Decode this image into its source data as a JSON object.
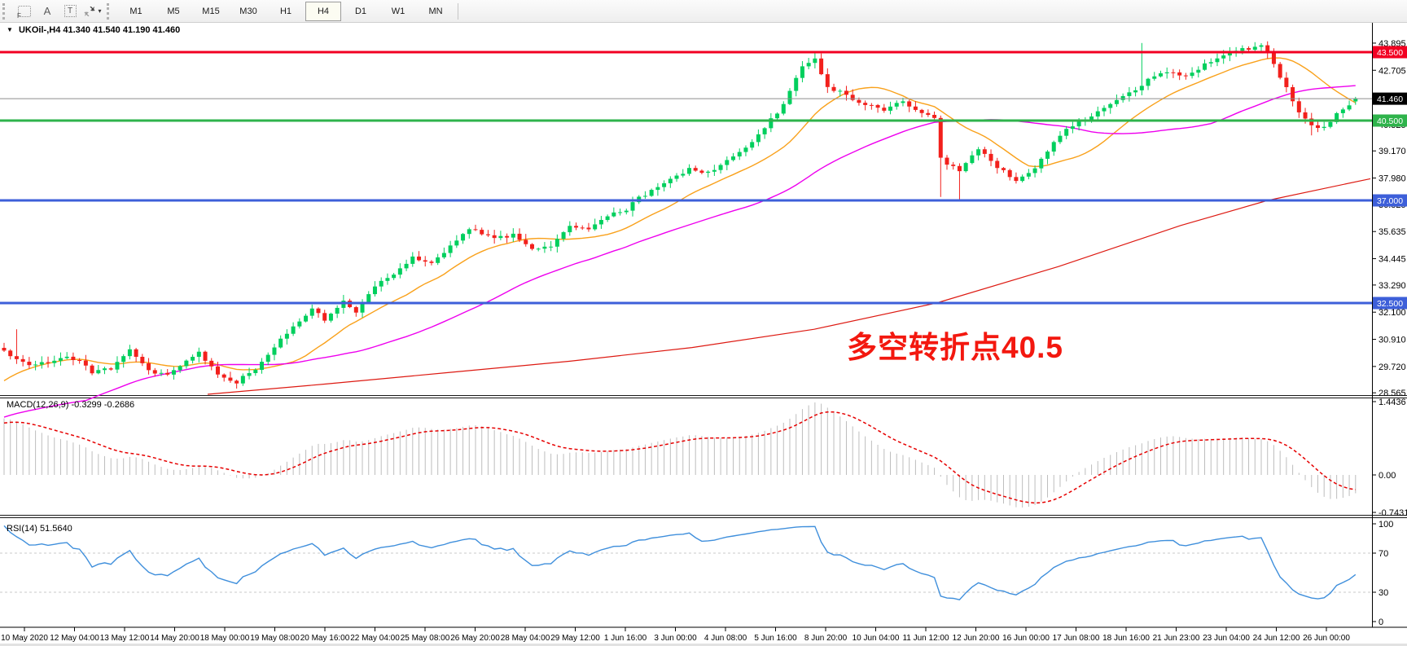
{
  "toolbar": {
    "tools": [
      {
        "name": "freehand-tool",
        "glyph": "F"
      },
      {
        "name": "text-label-tool",
        "glyph": "A"
      },
      {
        "name": "text-box-tool",
        "glyph": "T"
      },
      {
        "name": "arrows-tool",
        "dropdown_caret": "▾"
      }
    ],
    "timeframes": [
      "M1",
      "M5",
      "M15",
      "M30",
      "H1",
      "H4",
      "D1",
      "W1",
      "MN"
    ],
    "active_timeframe": "H4"
  },
  "chart": {
    "title": {
      "collapse_glyph": "▼",
      "symbol": "UKOil-,H4",
      "open": "41.340",
      "high": "41.540",
      "low": "41.190",
      "close": "41.460"
    },
    "annotation": {
      "text": "多空转折点40.5",
      "color": "#f3180f"
    }
  },
  "indicators": {
    "macd": {
      "name": "MACD(12,26,9)",
      "value": "-0.3299",
      "signal_value": "-0.2686",
      "scale_max": "1.4436",
      "scale_mid": "0.00",
      "scale_min": "-0.7431"
    },
    "rsi": {
      "name": "RSI(14)",
      "value": "51.5640",
      "scale": [
        "100",
        "70",
        "30",
        "0"
      ],
      "level_lines": [
        70,
        30
      ]
    }
  },
  "chart_data": {
    "type": "candlestick",
    "symbol": "UKOil-",
    "timeframe": "H4",
    "title": "UKOil-,H4 41.340 41.540 41.190 41.460",
    "y_axis_ticks": [
      43.895,
      42.705,
      41.515,
      40.325,
      39.17,
      37.98,
      36.825,
      35.635,
      34.445,
      33.29,
      32.1,
      30.91,
      29.72,
      28.565
    ],
    "x_axis_labels": [
      "10 May 2020",
      "12 May 04:00",
      "13 May 12:00",
      "14 May 20:00",
      "18 May 00:00",
      "19 May 08:00",
      "20 May 16:00",
      "22 May 04:00",
      "25 May 08:00",
      "26 May 20:00",
      "28 May 04:00",
      "29 May 12:00",
      "1 Jun 16:00",
      "3 Jun 00:00",
      "4 Jun 08:00",
      "5 Jun 16:00",
      "8 Jun 20:00",
      "10 Jun 04:00",
      "11 Jun 12:00",
      "12 Jun 20:00",
      "16 Jun 00:00",
      "17 Jun 08:00",
      "18 Jun 16:00",
      "21 Jun 23:00",
      "23 Jun 04:00",
      "24 Jun 12:00",
      "26 Jun 00:00"
    ],
    "levels": [
      {
        "price": 43.5,
        "label": "43.500",
        "color": "#f20022",
        "width": 3
      },
      {
        "price": 41.46,
        "label": "41.460",
        "color": "#8c8c8c",
        "width": 1,
        "badge_color": "#000000",
        "is_current_price": true
      },
      {
        "price": 40.5,
        "label": "40.500",
        "color": "#2eb34b",
        "width": 3
      },
      {
        "price": 37.0,
        "label": "37.000",
        "color": "#3d5fd9",
        "width": 3
      },
      {
        "price": 32.5,
        "label": "32.500",
        "color": "#3d5fd9",
        "width": 3
      }
    ],
    "candles": {
      "count": 216,
      "close_anchors": [
        [
          0,
          30.4
        ],
        [
          2,
          30.0
        ],
        [
          4,
          29.85
        ],
        [
          7,
          29.9
        ],
        [
          10,
          30.15
        ],
        [
          12,
          29.9
        ],
        [
          14,
          29.5
        ],
        [
          17,
          29.65
        ],
        [
          20,
          30.4
        ],
        [
          23,
          29.5
        ],
        [
          26,
          29.3
        ],
        [
          29,
          30.0
        ],
        [
          31,
          30.3
        ],
        [
          34,
          29.35
        ],
        [
          37,
          29.05
        ],
        [
          40,
          29.6
        ],
        [
          43,
          30.6
        ],
        [
          46,
          31.4
        ],
        [
          49,
          32.3
        ],
        [
          51,
          31.7
        ],
        [
          54,
          32.6
        ],
        [
          56,
          32.05
        ],
        [
          59,
          33.3
        ],
        [
          62,
          33.7
        ],
        [
          65,
          34.5
        ],
        [
          68,
          34.3
        ],
        [
          71,
          35.0
        ],
        [
          74,
          35.8
        ],
        [
          78,
          35.3
        ],
        [
          81,
          35.5
        ],
        [
          84,
          34.9
        ],
        [
          87,
          35.0
        ],
        [
          90,
          35.9
        ],
        [
          93,
          35.7
        ],
        [
          96,
          36.3
        ],
        [
          99,
          36.6
        ],
        [
          101,
          37.1
        ],
        [
          103,
          37.4
        ],
        [
          106,
          37.9
        ],
        [
          109,
          38.4
        ],
        [
          112,
          38.2
        ],
        [
          115,
          38.7
        ],
        [
          118,
          39.3
        ],
        [
          121,
          40.2
        ],
        [
          124,
          41.2
        ],
        [
          127,
          42.9
        ],
        [
          129,
          43.2
        ],
        [
          131,
          42.0
        ],
        [
          134,
          41.6
        ],
        [
          137,
          41.2
        ],
        [
          140,
          41.0
        ],
        [
          143,
          41.3
        ],
        [
          146,
          40.9
        ],
        [
          148,
          40.6
        ],
        [
          149,
          38.8
        ],
        [
          152,
          38.3
        ],
        [
          155,
          39.2
        ],
        [
          158,
          38.5
        ],
        [
          161,
          37.8
        ],
        [
          164,
          38.4
        ],
        [
          167,
          39.6
        ],
        [
          170,
          40.3
        ],
        [
          173,
          40.6
        ],
        [
          176,
          41.3
        ],
        [
          179,
          41.7
        ],
        [
          182,
          42.3
        ],
        [
          185,
          42.6
        ],
        [
          188,
          42.4
        ],
        [
          191,
          43.0
        ],
        [
          194,
          43.4
        ],
        [
          197,
          43.6
        ],
        [
          200,
          43.8
        ],
        [
          202,
          43.0
        ],
        [
          204,
          41.9
        ],
        [
          206,
          40.9
        ],
        [
          208,
          40.3
        ],
        [
          210,
          40.2
        ],
        [
          212,
          40.8
        ],
        [
          214,
          41.2
        ],
        [
          215,
          41.46
        ]
      ],
      "wick_overrides": [
        [
          2,
          31.35,
          null
        ],
        [
          37,
          null,
          28.75
        ],
        [
          129,
          43.45,
          null
        ],
        [
          149,
          null,
          37.15
        ],
        [
          152,
          null,
          37.0
        ],
        [
          181,
          43.9,
          null
        ],
        [
          200,
          43.895,
          null
        ],
        [
          208,
          null,
          39.85
        ]
      ],
      "last_candle": {
        "open": 41.34,
        "high": 41.54,
        "low": 41.19,
        "close": 41.46
      }
    },
    "prehistory": {
      "start": 24.5,
      "end": 30.3,
      "bars": 30
    },
    "moving_averages": [
      {
        "name": "fast-ma",
        "type": "sma",
        "period": 15,
        "color": "#f9a11b"
      },
      {
        "name": "medium-ma",
        "type": "sma",
        "period": 44,
        "color": "#ee00ee"
      },
      {
        "name": "long-ma",
        "type": "anchored",
        "color": "#dd1a12",
        "points": [
          [
            255,
            28.5
          ],
          [
            400,
            28.95
          ],
          [
            550,
            29.45
          ],
          [
            700,
            29.95
          ],
          [
            850,
            30.55
          ],
          [
            1000,
            31.35
          ],
          [
            1150,
            32.5
          ],
          [
            1300,
            34.1
          ],
          [
            1450,
            35.9
          ],
          [
            1557,
            37.0
          ],
          [
            1683,
            37.95
          ]
        ]
      }
    ],
    "indicator_panels": {
      "macd": {
        "params": [
          12,
          26,
          9
        ],
        "current": -0.3299,
        "current_signal": -0.2686,
        "scale": [
          1.4436,
          0.0,
          -0.7431
        ]
      },
      "rsi": {
        "period": 14,
        "current": 51.564,
        "scale": [
          100,
          70,
          30,
          0
        ]
      }
    },
    "colors": {
      "bull": "#00cf5d",
      "bear": "#f2201c",
      "macd_hist": "#bdbdbd",
      "macd_signal": "#e60000",
      "rsi_line": "#3f8fdc",
      "level_dash": "#c8c8c8"
    }
  }
}
